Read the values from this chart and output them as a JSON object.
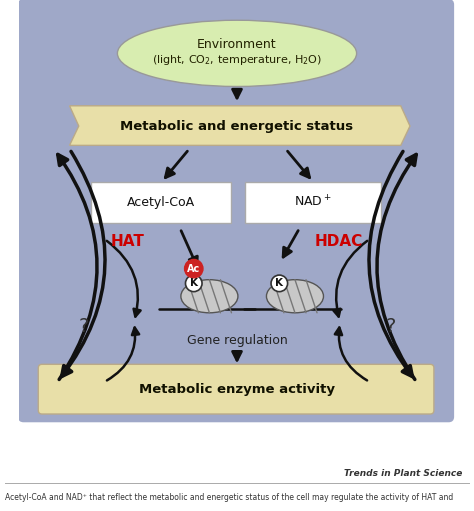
{
  "main_bg": "#9fa8c8",
  "ellipse_color": "#d8edb0",
  "hexbox_color": "#e8dfa8",
  "white_box_color": "#ffffff",
  "bottom_box_color": "#e8dfa8",
  "hat_color": "#cc0000",
  "hdac_color": "#cc0000",
  "arrow_color": "#111111",
  "nuc_color": "#c0c0c0",
  "fig_width": 4.74,
  "fig_height": 5.11,
  "dpi": 100,
  "env_line1": "Environment",
  "env_line2": "(light, CO₂, temperature, H₂O)",
  "metabolic_text": "Metabolic and energetic status",
  "acetyl_text": "Acetyl-CoA",
  "nad_text": "NAD",
  "hat_text": "HAT",
  "hdac_text": "HDAC",
  "gene_text": "Gene regulation",
  "enzyme_text": "Metabolic enzyme activity",
  "trends_text": "Trends in Plant Science",
  "caption_text": "Acetyl-CoA and NAD⁺ that reflect the metabolic and energetic status of the cell may regulate the activity of HAT and"
}
